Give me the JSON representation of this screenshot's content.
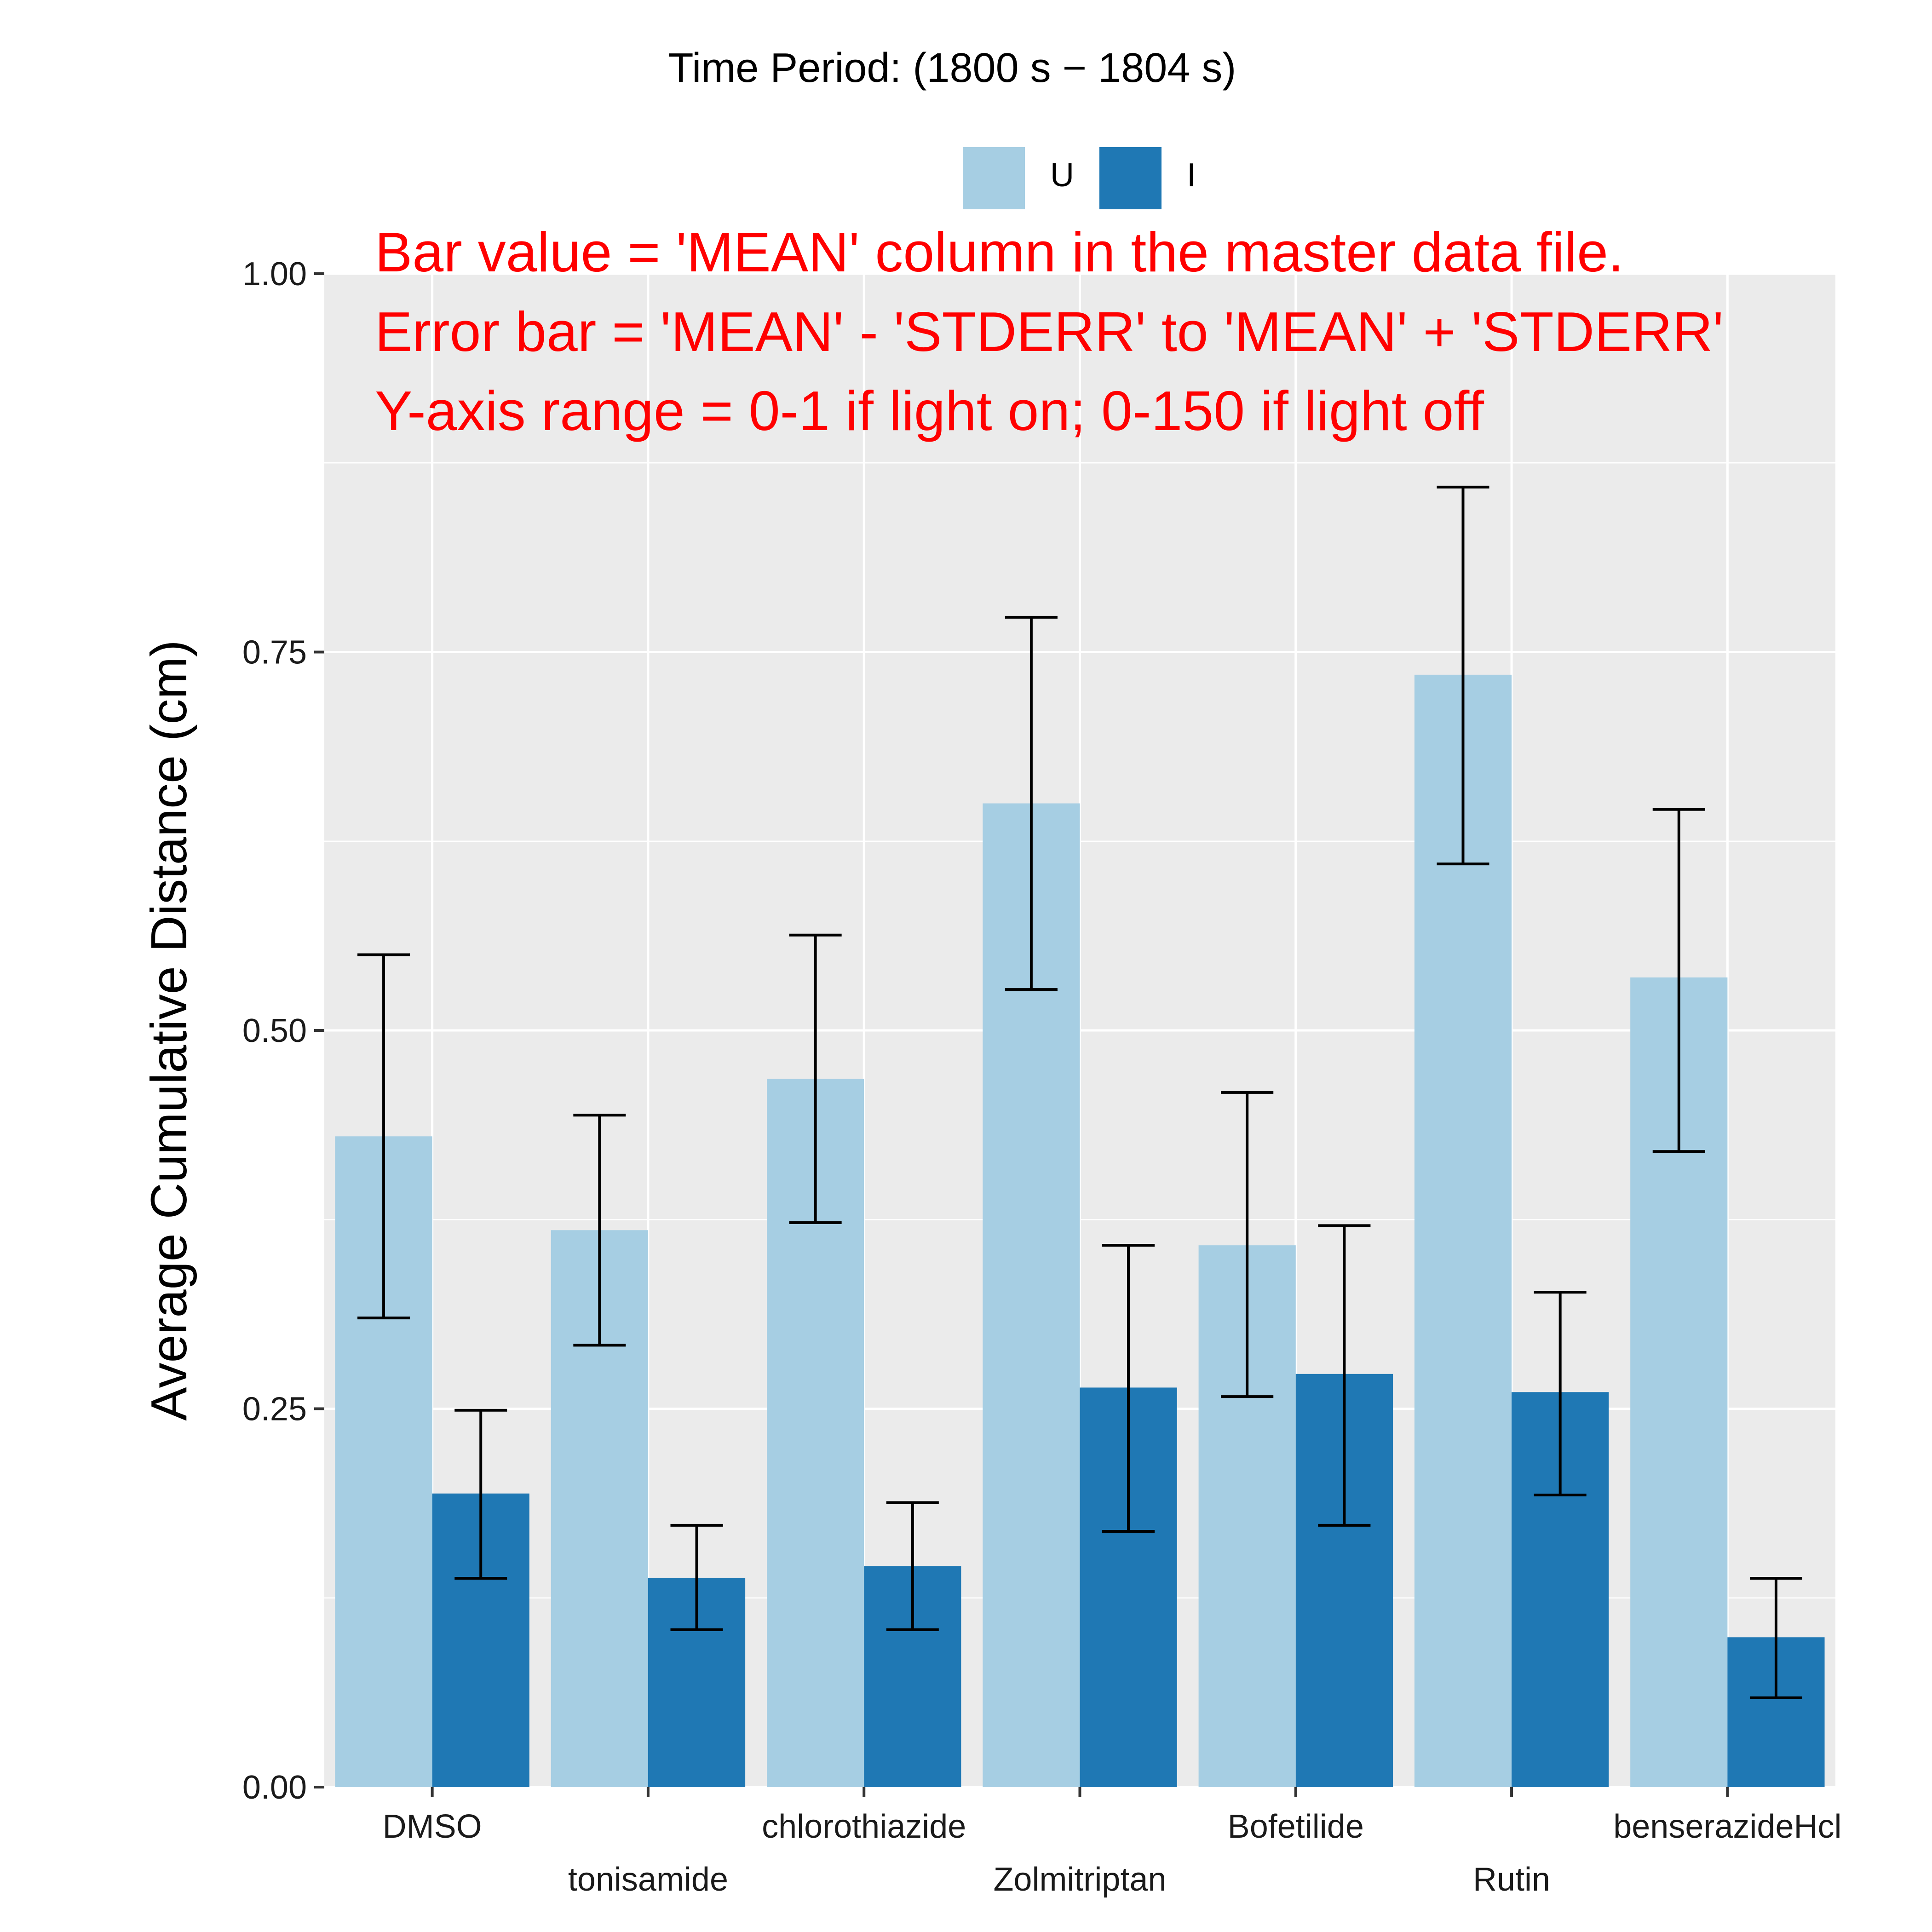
{
  "chart_data": {
    "type": "bar",
    "title": "Time Period: (1800 s − 1804 s)",
    "xlabel": "",
    "ylabel": "Average Cumulative Distance (cm)",
    "ylim": [
      0,
      1
    ],
    "yticks": [
      "0.00",
      "0.25",
      "0.50",
      "0.75",
      "1.00"
    ],
    "categories": [
      "DMSO",
      "tonisamide",
      "chlorothiazide",
      "Zolmitriptan",
      "Bofetilide",
      "Rutin",
      "benserazideHcl"
    ],
    "series": [
      {
        "name": "U",
        "color": "#a6cee3",
        "values": [
          0.43,
          0.368,
          0.468,
          0.65,
          0.358,
          0.735,
          0.535
        ],
        "error_low": [
          0.31,
          0.292,
          0.373,
          0.527,
          0.258,
          0.61,
          0.42
        ],
        "error_high": [
          0.55,
          0.444,
          0.563,
          0.773,
          0.459,
          0.859,
          0.646
        ]
      },
      {
        "name": "I",
        "color": "#1f78b4",
        "values": [
          0.194,
          0.138,
          0.146,
          0.264,
          0.273,
          0.261,
          0.099
        ],
        "error_low": [
          0.138,
          0.104,
          0.104,
          0.169,
          0.173,
          0.193,
          0.059
        ],
        "error_high": [
          0.249,
          0.173,
          0.188,
          0.358,
          0.371,
          0.327,
          0.138
        ]
      }
    ],
    "legend": {
      "position": "top",
      "entries": [
        "U",
        "I"
      ]
    },
    "annotations": [
      "Bar value = 'MEAN' column in the master data file.",
      "Error bar = 'MEAN' - 'STDERR' to 'MEAN' + 'STDERR'",
      "Y-axis range = 0-1 if light on; 0-150 if light off"
    ],
    "annotation_color": "#ff0000",
    "panel_background": "#ebebeb",
    "grid": true
  }
}
